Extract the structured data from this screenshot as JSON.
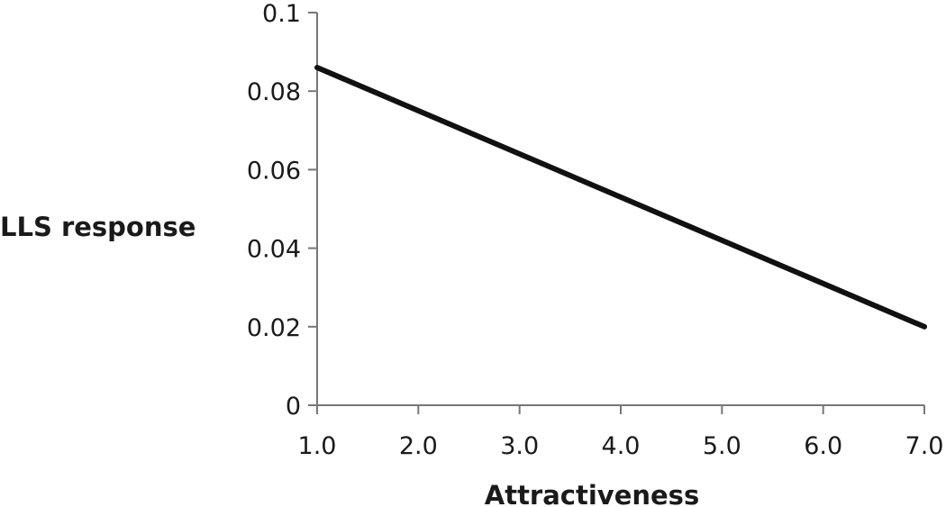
{
  "chart_data": {
    "type": "line",
    "xlabel": "Attractiveness",
    "ylabel": "LLS response",
    "xlim": [
      1.0,
      7.0
    ],
    "ylim": [
      0,
      0.1
    ],
    "x_ticks": [
      "1.0",
      "2.0",
      "3.0",
      "4.0",
      "5.0",
      "6.0",
      "7.0"
    ],
    "y_ticks": [
      "0",
      "0.02",
      "0.04",
      "0.06",
      "0.08",
      "0.1"
    ],
    "grid": false,
    "legend": "none",
    "series": [
      {
        "x": [
          1.0,
          7.0
        ],
        "y": [
          0.086,
          0.02
        ],
        "color": "#111111"
      }
    ]
  }
}
